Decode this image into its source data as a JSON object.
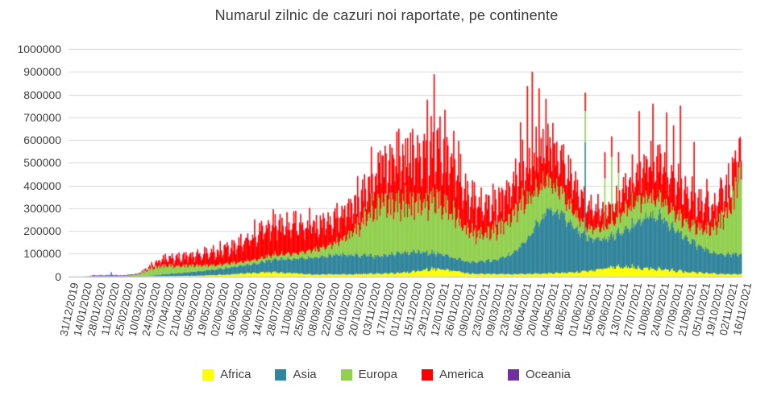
{
  "title": "Numarul zilnic de cazuri noi raportate, pe continente",
  "colors": {
    "text": "#404040",
    "title_text": "#3b3b3b",
    "grid": "#d9d9d9",
    "axis_line": "#bfbfbf",
    "background": "#ffffff"
  },
  "chart_data": {
    "type": "bar",
    "stacked": true,
    "title": "Numarul zilnic de cazuri noi raportate, pe continente",
    "xlabel": "",
    "ylabel": "",
    "ylim": [
      0,
      1000000
    ],
    "grid": "horizontal",
    "legend_position": "bottom",
    "y_ticks": [
      "0",
      "100000",
      "200000",
      "300000",
      "400000",
      "500000",
      "600000",
      "700000",
      "800000",
      "900000",
      "1000000"
    ],
    "x_tick_interval_days": 14,
    "days_total": 686,
    "x_tick_labels": [
      "31/12/2019",
      "14/01/2020",
      "28/01/2020",
      "11/02/2020",
      "25/02/2020",
      "10/03/2020",
      "24/03/2020",
      "07/04/2020",
      "21/04/2020",
      "05/05/2020",
      "19/05/2020",
      "02/06/2020",
      "16/06/2020",
      "30/06/2020",
      "14/07/2020",
      "28/07/2020",
      "11/08/2020",
      "25/08/2020",
      "08/09/2020",
      "22/09/2020",
      "06/10/2020",
      "20/10/2020",
      "03/11/2020",
      "17/11/2020",
      "01/12/2020",
      "15/12/2020",
      "29/12/2020",
      "12/01/2021",
      "26/01/2021",
      "09/02/2021",
      "23/02/2021",
      "09/03/2021",
      "23/03/2021",
      "06/04/2021",
      "20/04/2021",
      "04/05/2021",
      "18/05/2021",
      "01/06/2021",
      "15/06/2021",
      "29/06/2021",
      "13/07/2021",
      "27/07/2021",
      "10/08/2021",
      "24/08/2021",
      "07/09/2021",
      "21/09/2021",
      "05/10/2021",
      "19/10/2021",
      "02/11/2021",
      "16/11/2021"
    ],
    "series": [
      {
        "name": "Africa",
        "color": "#ffff00",
        "values": [
          0,
          0,
          0,
          0,
          10,
          60,
          600,
          1100,
          1600,
          2600,
          4200,
          6500,
          10000,
          14000,
          18000,
          18500,
          14000,
          10500,
          8500,
          8000,
          8500,
          10000,
          11000,
          12500,
          15000,
          21000,
          28000,
          32000,
          24000,
          14000,
          10000,
          9500,
          10000,
          11000,
          12000,
          13000,
          15000,
          18000,
          26000,
          36000,
          46000,
          41000,
          36000,
          31000,
          26000,
          20000,
          15000,
          12000,
          10000,
          9000
        ]
      },
      {
        "name": "Asia",
        "color": "#31859c",
        "values": [
          30,
          100,
          2600,
          3000,
          1200,
          1800,
          3000,
          9000,
          13000,
          17000,
          22000,
          27000,
          32000,
          37000,
          46000,
          57000,
          62000,
          67000,
          76000,
          82000,
          86000,
          82000,
          78000,
          80000,
          84000,
          86000,
          76000,
          68000,
          58000,
          50000,
          54000,
          62000,
          82000,
          125000,
          210000,
          290000,
          255000,
          185000,
          140000,
          130000,
          145000,
          185000,
          225000,
          235000,
          185000,
          145000,
          112000,
          92000,
          85000,
          88000
        ]
      },
      {
        "name": "Europa",
        "color": "#92d050",
        "values": [
          0,
          0,
          10,
          10,
          300,
          6000,
          32000,
          38000,
          32000,
          27000,
          22000,
          19000,
          18000,
          17000,
          18000,
          20000,
          22000,
          27000,
          34000,
          45000,
          70000,
          120000,
          195000,
          240000,
          225000,
          215000,
          225000,
          235000,
          190000,
          140000,
          120000,
          130000,
          160000,
          185000,
          160000,
          125000,
          90000,
          60000,
          45000,
          50000,
          75000,
          95000,
          90000,
          80000,
          75000,
          72000,
          78000,
          110000,
          200000,
          380000
        ]
      },
      {
        "name": "America",
        "color": "#ff0000",
        "values": [
          0,
          0,
          5,
          5,
          30,
          600,
          11000,
          31000,
          36000,
          42000,
          52000,
          62000,
          73000,
          96000,
          128000,
          138000,
          128000,
          118000,
          112000,
          108000,
          112000,
          122000,
          135000,
          165000,
          185000,
          205000,
          215000,
          255000,
          215000,
          150000,
          122000,
          118000,
          132000,
          142000,
          148000,
          142000,
          132000,
          112000,
          92000,
          82000,
          88000,
          112000,
          142000,
          162000,
          152000,
          132000,
          106000,
          96000,
          96000,
          102000
        ]
      },
      {
        "name": "Oceania",
        "color": "#7030a0",
        "values": [
          0,
          0,
          5,
          5,
          5,
          30,
          350,
          220,
          60,
          30,
          25,
          25,
          25,
          25,
          250,
          550,
          450,
          300,
          130,
          50,
          30,
          25,
          25,
          25,
          25,
          25,
          25,
          30,
          30,
          25,
          25,
          30,
          30,
          30,
          35,
          40,
          45,
          45,
          55,
          110,
          220,
          550,
          900,
          1300,
          1900,
          2100,
          2300,
          2100,
          1700,
          1500
        ]
      }
    ],
    "render_texture": {
      "weekly_pattern": [
        [
          1.1,
          1.05,
          0.95,
          0.85,
          0.9,
          1.0,
          1.15
        ],
        [
          1.05,
          1.02,
          0.97,
          0.94,
          0.97,
          1.01,
          1.04
        ],
        [
          1.22,
          1.05,
          0.72,
          0.9,
          1.08,
          1.12,
          0.78
        ],
        [
          1.3,
          0.95,
          0.62,
          0.8,
          1.05,
          1.28,
          0.9
        ],
        [
          1,
          1,
          1,
          1,
          1,
          1,
          1
        ]
      ],
      "jitter_amp": [
        0.22,
        0.08,
        0.14,
        0.22,
        0.3
      ],
      "spikes": [
        [
          43,
          1,
          12000
        ],
        [
          317,
          3,
          200000
        ],
        [
          331,
          3,
          160000
        ],
        [
          345,
          3,
          200000
        ],
        [
          365,
          3,
          220000
        ],
        [
          372,
          3,
          300000
        ],
        [
          460,
          3,
          180000
        ],
        [
          467,
          3,
          300000
        ],
        [
          472,
          3,
          430000
        ],
        [
          479,
          3,
          330000
        ],
        [
          486,
          3,
          250000
        ],
        [
          493,
          3,
          180000
        ],
        [
          526,
          1,
          400000
        ],
        [
          526,
          2,
          80000
        ],
        [
          546,
          2,
          200000
        ],
        [
          553,
          2,
          250000
        ],
        [
          560,
          2,
          150000
        ],
        [
          581,
          3,
          200000
        ],
        [
          595,
          3,
          160000
        ],
        [
          609,
          3,
          170000
        ],
        [
          616,
          3,
          200000
        ],
        [
          623,
          3,
          230000
        ],
        [
          637,
          3,
          160000
        ],
        [
          650,
          3,
          150000
        ],
        [
          664,
          3,
          140000
        ],
        [
          678,
          3,
          130000
        ]
      ]
    }
  }
}
